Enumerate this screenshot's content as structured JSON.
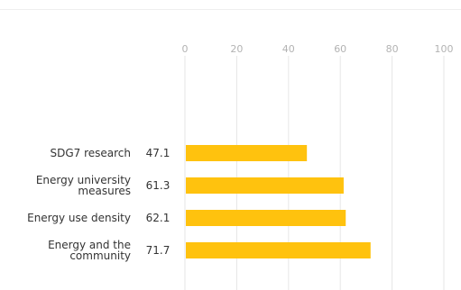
{
  "chart_data": {
    "type": "bar",
    "orientation": "horizontal",
    "categories": [
      [
        "SDG7 research"
      ],
      [
        "Energy university",
        "measures"
      ],
      [
        "Energy use density"
      ],
      [
        "Energy and the",
        "community"
      ]
    ],
    "values": [
      47.1,
      61.3,
      62.1,
      71.7
    ],
    "value_labels": [
      "47.1",
      "61.3",
      "62.1",
      "71.7"
    ],
    "xlim": [
      0,
      100
    ],
    "x_ticks": [
      0,
      20,
      40,
      60,
      80,
      100
    ],
    "x_tick_labels": [
      "0",
      "20",
      "40",
      "60",
      "80",
      "100"
    ],
    "xaxis_position": "top",
    "grid": true,
    "bar_color": "#FFC20E",
    "grid_color": "#e6e6e6"
  }
}
